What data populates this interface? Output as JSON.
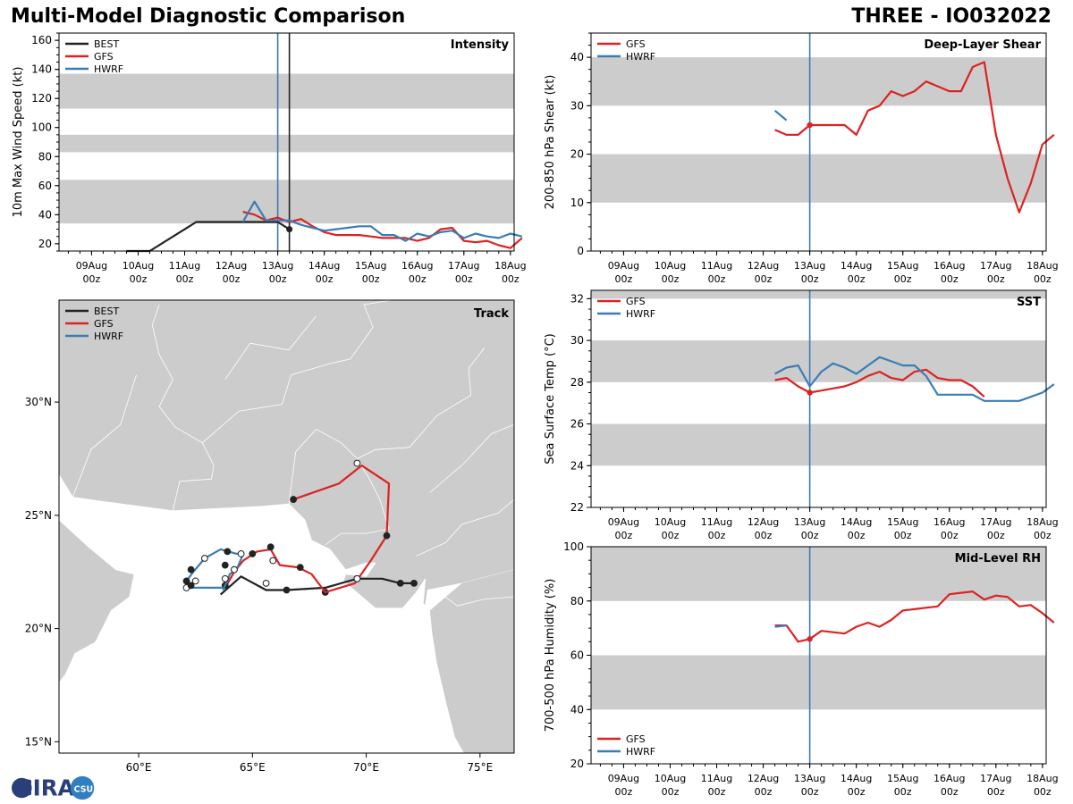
{
  "page": {
    "title_left": "Multi-Model Diagnostic Comparison",
    "title_right": "THREE - IO032022",
    "logo_text": "CIRA",
    "logo_badge_text": "CSU"
  },
  "colors": {
    "BEST": "#222222",
    "GFS": "#dd2222",
    "HWRF": "#3a7db5",
    "band": "#cccccc",
    "vline": "#3a7db5",
    "land": "#cccccc",
    "border": "#ffffff"
  },
  "time_axis": {
    "ticks": [
      {
        "t": 0,
        "date": "09Aug",
        "hour": "00z"
      },
      {
        "t": 1,
        "date": "10Aug",
        "hour": "00z"
      },
      {
        "t": 2,
        "date": "11Aug",
        "hour": "00z"
      },
      {
        "t": 3,
        "date": "12Aug",
        "hour": "00z"
      },
      {
        "t": 4,
        "date": "13Aug",
        "hour": "00z"
      },
      {
        "t": 5,
        "date": "14Aug",
        "hour": "00z"
      },
      {
        "t": 6,
        "date": "15Aug",
        "hour": "00z"
      },
      {
        "t": 7,
        "date": "16Aug",
        "hour": "00z"
      },
      {
        "t": 8,
        "date": "17Aug",
        "hour": "00z"
      },
      {
        "t": 9,
        "date": "18Aug",
        "hour": "00z"
      }
    ],
    "range": [
      -0.7,
      9.08
    ]
  },
  "chart_data": [
    {
      "id": "intensity",
      "type": "line",
      "title": "Intensity",
      "ylabel": "10m Max Wind Speed (kt)",
      "ylim": [
        15,
        165
      ],
      "yticks": [
        20,
        40,
        60,
        80,
        100,
        120,
        140,
        160
      ],
      "bands": [
        [
          34,
          64
        ],
        [
          83,
          95
        ],
        [
          113,
          137
        ]
      ],
      "vlines": [
        {
          "t": 4.0,
          "color": "HWRF"
        },
        {
          "t": 4.25,
          "color": "BEST"
        }
      ],
      "legend": [
        "BEST",
        "GFS",
        "HWRF"
      ],
      "series": [
        {
          "name": "BEST",
          "t": [
            0.75,
            1.25,
            2.25,
            3.25,
            4.0,
            4.25
          ],
          "values": [
            15,
            15,
            35,
            35,
            35,
            30
          ],
          "end_marker": true
        },
        {
          "name": "GFS",
          "t": [
            3.25,
            3.5,
            3.75,
            4.0,
            4.25,
            4.5,
            4.75,
            5.0,
            5.25,
            5.5,
            5.75,
            6.0,
            6.25,
            6.5,
            6.75,
            7.0,
            7.25,
            7.5,
            7.75,
            8.0,
            8.25,
            8.5,
            8.75,
            9.0,
            9.25
          ],
          "values": [
            42,
            40,
            36,
            38,
            35,
            37,
            32,
            28,
            26,
            26,
            26,
            25,
            24,
            24,
            24,
            22,
            24,
            30,
            31,
            22,
            21,
            22,
            19,
            17,
            24
          ]
        },
        {
          "name": "HWRF",
          "t": [
            3.25,
            3.5,
            3.75,
            4.0,
            4.25,
            4.5,
            4.75,
            5.0,
            5.25,
            5.5,
            5.75,
            6.0,
            6.25,
            6.5,
            6.75,
            7.0,
            7.25,
            7.5,
            7.75,
            8.0,
            8.25,
            8.5,
            8.75,
            9.0,
            9.25
          ],
          "values": [
            35,
            49,
            36,
            36,
            36,
            33,
            31,
            29,
            30,
            31,
            32,
            32,
            26,
            26,
            22,
            27,
            25,
            28,
            29,
            24,
            27,
            25,
            24,
            27,
            25
          ]
        }
      ]
    },
    {
      "id": "shear",
      "type": "line",
      "title": "Deep-Layer Shear",
      "ylabel": "200-850 hPa Shear (kt)",
      "ylim": [
        0,
        45
      ],
      "yticks": [
        0,
        10,
        20,
        30,
        40
      ],
      "bands": [
        [
          10,
          20
        ],
        [
          30,
          40
        ]
      ],
      "vlines": [
        {
          "t": 4.0,
          "color": "HWRF"
        }
      ],
      "legend": [
        "GFS",
        "HWRF"
      ],
      "series": [
        {
          "name": "GFS",
          "t": [
            3.25,
            3.5,
            3.75,
            4.0,
            4.25,
            4.5,
            4.75,
            5.0,
            5.25,
            5.5,
            5.75,
            6.0,
            6.25,
            6.5,
            6.75,
            7.0,
            7.25,
            7.5,
            7.75,
            8.0,
            8.25,
            8.5,
            8.75,
            9.0,
            9.25
          ],
          "values": [
            25,
            24,
            24,
            26,
            26,
            26,
            26,
            24,
            29,
            30,
            33,
            32,
            33,
            35,
            34,
            33,
            33,
            38,
            39,
            24,
            15,
            8,
            14,
            22,
            24
          ]
        },
        {
          "name": "HWRF",
          "t": [
            3.25,
            3.5
          ],
          "values": [
            29,
            27
          ]
        }
      ]
    },
    {
      "id": "track",
      "type": "scatter",
      "title": "Track",
      "xlim": [
        56.5,
        76.5
      ],
      "ylim": [
        14.5,
        34.5
      ],
      "xticks": [
        {
          "v": 60,
          "label": "60°E"
        },
        {
          "v": 65,
          "label": "65°E"
        },
        {
          "v": 70,
          "label": "70°E"
        },
        {
          "v": 75,
          "label": "75°E"
        }
      ],
      "yticks": [
        {
          "v": 15,
          "label": "15°N"
        },
        {
          "v": 20,
          "label": "20°N"
        },
        {
          "v": 25,
          "label": "25°N"
        },
        {
          "v": 30,
          "label": "30°N"
        }
      ],
      "legend": [
        "BEST",
        "GFS",
        "HWRF"
      ],
      "tracks": [
        {
          "name": "BEST",
          "lon": [
            72.1,
            71.5,
            70.7,
            69.6,
            68.2,
            66.5,
            65.6,
            64.5,
            63.6
          ],
          "lat": [
            22.0,
            22.0,
            22.2,
            22.2,
            21.8,
            21.7,
            21.7,
            22.3,
            21.5
          ],
          "markers": [
            [
              72.1,
              22.0,
              1
            ],
            [
              71.5,
              22.0,
              1
            ],
            [
              69.6,
              22.2,
              0
            ],
            [
              68.2,
              21.6,
              1
            ],
            [
              66.5,
              21.7,
              1
            ],
            [
              65.6,
              22.0,
              0
            ]
          ]
        },
        {
          "name": "GFS",
          "lon": [
            63.8,
            64.2,
            64.6,
            65.2,
            65.8,
            66.2,
            67.0,
            67.6,
            68.2,
            69.5,
            70.2,
            70.9,
            71.0,
            69.8,
            68.8,
            66.8
          ],
          "lat": [
            21.8,
            22.5,
            23.0,
            23.4,
            23.5,
            22.8,
            22.7,
            22.4,
            21.6,
            22.0,
            23.0,
            24.1,
            26.4,
            27.2,
            26.4,
            25.7
          ],
          "markers": [
            [
              63.8,
              21.9,
              1
            ],
            [
              64.2,
              22.6,
              0
            ],
            [
              65.0,
              23.3,
              1
            ],
            [
              65.8,
              23.6,
              1
            ],
            [
              65.9,
              23.0,
              0
            ],
            [
              67.1,
              22.7,
              1
            ],
            [
              69.6,
              22.2,
              0
            ],
            [
              70.9,
              24.1,
              1
            ],
            [
              69.6,
              27.3,
              0
            ],
            [
              66.8,
              25.7,
              1
            ]
          ]
        },
        {
          "name": "HWRF",
          "lon": [
            63.7,
            63.9,
            64.0,
            64.3,
            64.6,
            64.3,
            63.6,
            62.9,
            62.4,
            62.1,
            62.2,
            63.7
          ],
          "lat": [
            21.7,
            22.1,
            22.4,
            22.6,
            23.3,
            23.3,
            23.5,
            23.1,
            22.5,
            22.1,
            21.8,
            21.8
          ],
          "markers": [
            [
              63.8,
              22.2,
              0
            ],
            [
              64.2,
              22.6,
              0
            ],
            [
              64.5,
              23.3,
              0
            ],
            [
              63.9,
              23.4,
              1
            ],
            [
              63.8,
              22.8,
              1
            ],
            [
              62.9,
              23.1,
              0
            ],
            [
              62.3,
              22.6,
              1
            ],
            [
              62.1,
              22.1,
              1
            ],
            [
              62.1,
              21.8,
              0
            ],
            [
              62.3,
              21.9,
              1
            ],
            [
              62.5,
              22.1,
              0
            ]
          ]
        }
      ]
    },
    {
      "id": "sst",
      "type": "line",
      "title": "SST",
      "ylabel": "Sea Surface Temp (°C)",
      "ylim": [
        22,
        32.4
      ],
      "yticks": [
        22,
        24,
        26,
        28,
        30,
        32
      ],
      "bands": [
        [
          24,
          26
        ],
        [
          28,
          30
        ],
        [
          32,
          33
        ]
      ],
      "vlines": [
        {
          "t": 4.0,
          "color": "HWRF"
        }
      ],
      "legend": [
        "GFS",
        "HWRF"
      ],
      "series": [
        {
          "name": "GFS",
          "t": [
            3.25,
            3.5,
            3.75,
            4.0,
            4.25,
            4.5,
            4.75,
            5.0,
            5.25,
            5.5,
            5.75,
            6.0,
            6.25,
            6.5,
            6.75,
            7.0,
            7.25,
            7.5,
            7.75
          ],
          "values": [
            28.1,
            28.2,
            27.8,
            27.5,
            27.6,
            27.7,
            27.8,
            28.0,
            28.3,
            28.5,
            28.2,
            28.1,
            28.5,
            28.6,
            28.2,
            28.1,
            28.1,
            27.8,
            27.3
          ]
        },
        {
          "name": "HWRF",
          "t": [
            3.25,
            3.5,
            3.75,
            4.0,
            4.25,
            4.5,
            4.75,
            5.0,
            5.25,
            5.5,
            5.75,
            6.0,
            6.25,
            6.5,
            6.75,
            7.0,
            7.25,
            7.5,
            7.75,
            8.0,
            8.25,
            8.5,
            8.75,
            9.0,
            9.25
          ],
          "values": [
            28.4,
            28.7,
            28.8,
            27.8,
            28.5,
            28.9,
            28.7,
            28.4,
            28.8,
            29.2,
            29.0,
            28.8,
            28.8,
            28.3,
            27.4,
            27.4,
            27.4,
            27.4,
            27.1,
            27.1,
            27.1,
            27.1,
            27.3,
            27.5,
            27.9
          ]
        }
      ]
    },
    {
      "id": "rh",
      "type": "line",
      "title": "Mid-Level RH",
      "ylabel": "700-500 hPa Humidity (%)",
      "ylim": [
        20,
        100
      ],
      "yticks": [
        20,
        40,
        60,
        80,
        100
      ],
      "bands": [
        [
          40,
          60
        ],
        [
          80,
          100
        ]
      ],
      "vlines": [
        {
          "t": 4.0,
          "color": "HWRF"
        }
      ],
      "legend": [
        "GFS",
        "HWRF"
      ],
      "legend_pos": "bottom-left",
      "series": [
        {
          "name": "GFS",
          "t": [
            3.25,
            3.5,
            3.75,
            4.0,
            4.25,
            4.5,
            4.75,
            5.0,
            5.25,
            5.5,
            5.75,
            6.0,
            6.25,
            6.5,
            6.75,
            7.0,
            7.25,
            7.5,
            7.75,
            8.0,
            8.25,
            8.5,
            8.75,
            9.0,
            9.25
          ],
          "values": [
            71,
            71,
            65,
            66,
            69,
            68.5,
            68,
            70.5,
            72,
            70.5,
            73,
            76.5,
            77,
            77.5,
            78,
            82.5,
            83,
            83.5,
            80.5,
            82,
            81.5,
            78,
            78.5,
            75.5,
            72
          ]
        },
        {
          "name": "HWRF",
          "t": [
            3.25,
            3.5
          ],
          "values": [
            70.5,
            71
          ]
        }
      ]
    }
  ]
}
